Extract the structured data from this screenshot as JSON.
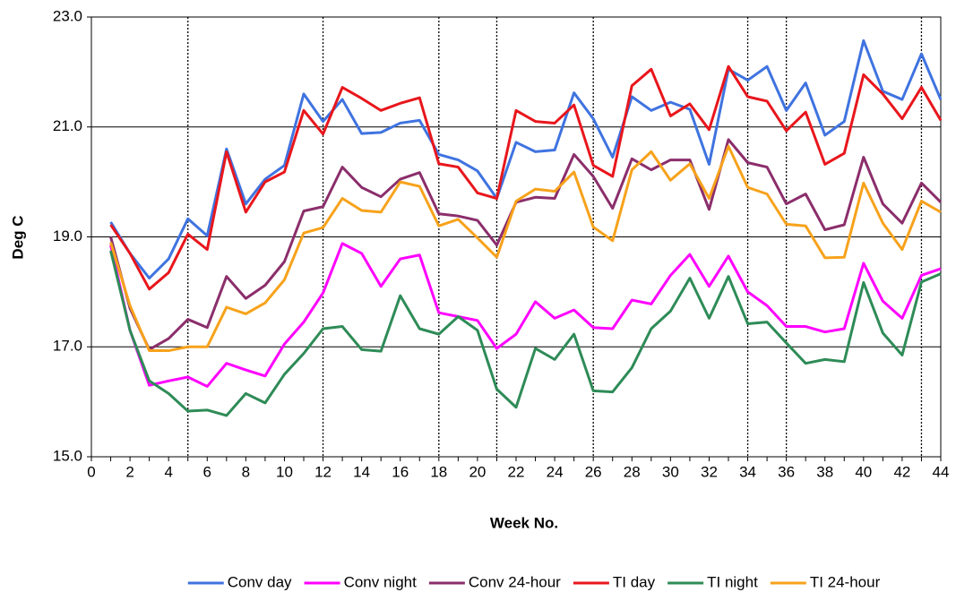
{
  "chart_data": {
    "type": "line",
    "x": [
      1,
      2,
      3,
      4,
      5,
      6,
      7,
      8,
      9,
      10,
      11,
      12,
      13,
      14,
      15,
      16,
      17,
      18,
      19,
      20,
      21,
      22,
      23,
      24,
      25,
      26,
      27,
      28,
      29,
      30,
      31,
      32,
      33,
      34,
      35,
      36,
      37,
      38,
      39,
      40,
      41,
      42,
      43,
      44
    ],
    "xlabel": "Week No.",
    "ylabel": "Deg C",
    "xlim": [
      0,
      44
    ],
    "xticks": [
      0,
      2,
      4,
      6,
      8,
      10,
      12,
      14,
      16,
      18,
      20,
      22,
      24,
      26,
      28,
      30,
      32,
      34,
      36,
      38,
      40,
      42,
      44
    ],
    "ylim": [
      15,
      23
    ],
    "yticks": [
      {
        "value": 15,
        "label": "15.0"
      },
      {
        "value": 17,
        "label": "17.0"
      },
      {
        "value": 19,
        "label": "19.0"
      },
      {
        "value": 21,
        "label": "21.0"
      },
      {
        "value": 23,
        "label": "23.0"
      }
    ],
    "grid": true,
    "vlines": [
      5,
      12,
      18,
      21,
      26,
      34,
      36,
      43
    ],
    "legend": "bottom",
    "series": [
      {
        "name": "Conv day",
        "color": "#3f73e0",
        "values": [
          19.27,
          18.7,
          18.25,
          18.6,
          19.33,
          19.02,
          20.6,
          19.6,
          20.05,
          20.3,
          21.6,
          21.1,
          21.5,
          20.88,
          20.9,
          21.07,
          21.12,
          20.5,
          20.4,
          20.2,
          19.7,
          20.72,
          20.55,
          20.58,
          21.62,
          21.15,
          20.45,
          21.55,
          21.3,
          21.45,
          21.32,
          20.32,
          22.05,
          21.85,
          22.1,
          21.3,
          21.8,
          20.85,
          21.1,
          22.57,
          21.65,
          21.5,
          22.33,
          21.5
        ]
      },
      {
        "name": "Conv night",
        "color": "#ff00ff",
        "values": [
          18.85,
          17.3,
          16.3,
          16.38,
          16.45,
          16.28,
          16.7,
          16.58,
          16.47,
          17.05,
          17.45,
          17.98,
          18.88,
          18.7,
          18.1,
          18.6,
          18.67,
          17.62,
          17.55,
          17.48,
          16.97,
          17.23,
          17.82,
          17.52,
          17.67,
          17.35,
          17.33,
          17.85,
          17.78,
          18.3,
          18.68,
          18.1,
          18.65,
          18.0,
          17.75,
          17.37,
          17.37,
          17.27,
          17.33,
          18.52,
          17.83,
          17.52,
          18.3,
          18.42
        ]
      },
      {
        "name": "Conv 24-hour",
        "color": "#8b2e6b",
        "values": [
          19.0,
          17.7,
          16.95,
          17.15,
          17.5,
          17.35,
          18.28,
          17.88,
          18.12,
          18.55,
          19.47,
          19.55,
          20.27,
          19.9,
          19.73,
          20.05,
          20.17,
          19.42,
          19.38,
          19.3,
          18.85,
          19.63,
          19.72,
          19.7,
          20.5,
          20.1,
          19.52,
          20.42,
          20.22,
          20.4,
          20.4,
          19.5,
          20.77,
          20.35,
          20.27,
          19.6,
          19.78,
          19.13,
          19.22,
          20.45,
          19.6,
          19.25,
          19.98,
          19.63
        ]
      },
      {
        "name": "TI day",
        "color": "#e8161c",
        "values": [
          19.22,
          18.7,
          18.05,
          18.35,
          19.05,
          18.77,
          20.55,
          19.45,
          20.0,
          20.18,
          21.3,
          20.87,
          21.72,
          21.52,
          21.3,
          21.43,
          21.53,
          20.33,
          20.27,
          19.8,
          19.7,
          21.3,
          21.1,
          21.07,
          21.4,
          20.3,
          20.1,
          21.75,
          22.05,
          21.2,
          21.42,
          20.95,
          22.1,
          21.55,
          21.47,
          20.93,
          21.27,
          20.32,
          20.52,
          21.95,
          21.6,
          21.15,
          21.72,
          21.12
        ]
      },
      {
        "name": "TI night",
        "color": "#2e8b57",
        "values": [
          18.75,
          17.3,
          16.38,
          16.15,
          15.83,
          15.85,
          15.75,
          16.15,
          15.98,
          16.5,
          16.88,
          17.33,
          17.37,
          16.95,
          16.92,
          17.93,
          17.33,
          17.23,
          17.55,
          17.3,
          16.23,
          15.9,
          16.97,
          16.77,
          17.23,
          16.2,
          16.18,
          16.62,
          17.33,
          17.65,
          18.25,
          17.52,
          18.28,
          17.42,
          17.45,
          17.07,
          16.7,
          16.77,
          16.73,
          18.17,
          17.25,
          16.85,
          18.18,
          18.33
        ]
      },
      {
        "name": "TI 24-hour",
        "color": "#f7a21b",
        "values": [
          18.9,
          17.75,
          16.93,
          16.93,
          17.0,
          17.0,
          17.72,
          17.6,
          17.8,
          18.22,
          19.07,
          19.17,
          19.7,
          19.48,
          19.45,
          20.0,
          19.92,
          19.2,
          19.32,
          18.98,
          18.63,
          19.65,
          19.87,
          19.83,
          20.18,
          19.18,
          18.93,
          20.22,
          20.55,
          20.03,
          20.33,
          19.7,
          20.65,
          19.9,
          19.78,
          19.23,
          19.2,
          18.62,
          18.63,
          19.98,
          19.25,
          18.77,
          19.65,
          19.45
        ]
      }
    ]
  }
}
